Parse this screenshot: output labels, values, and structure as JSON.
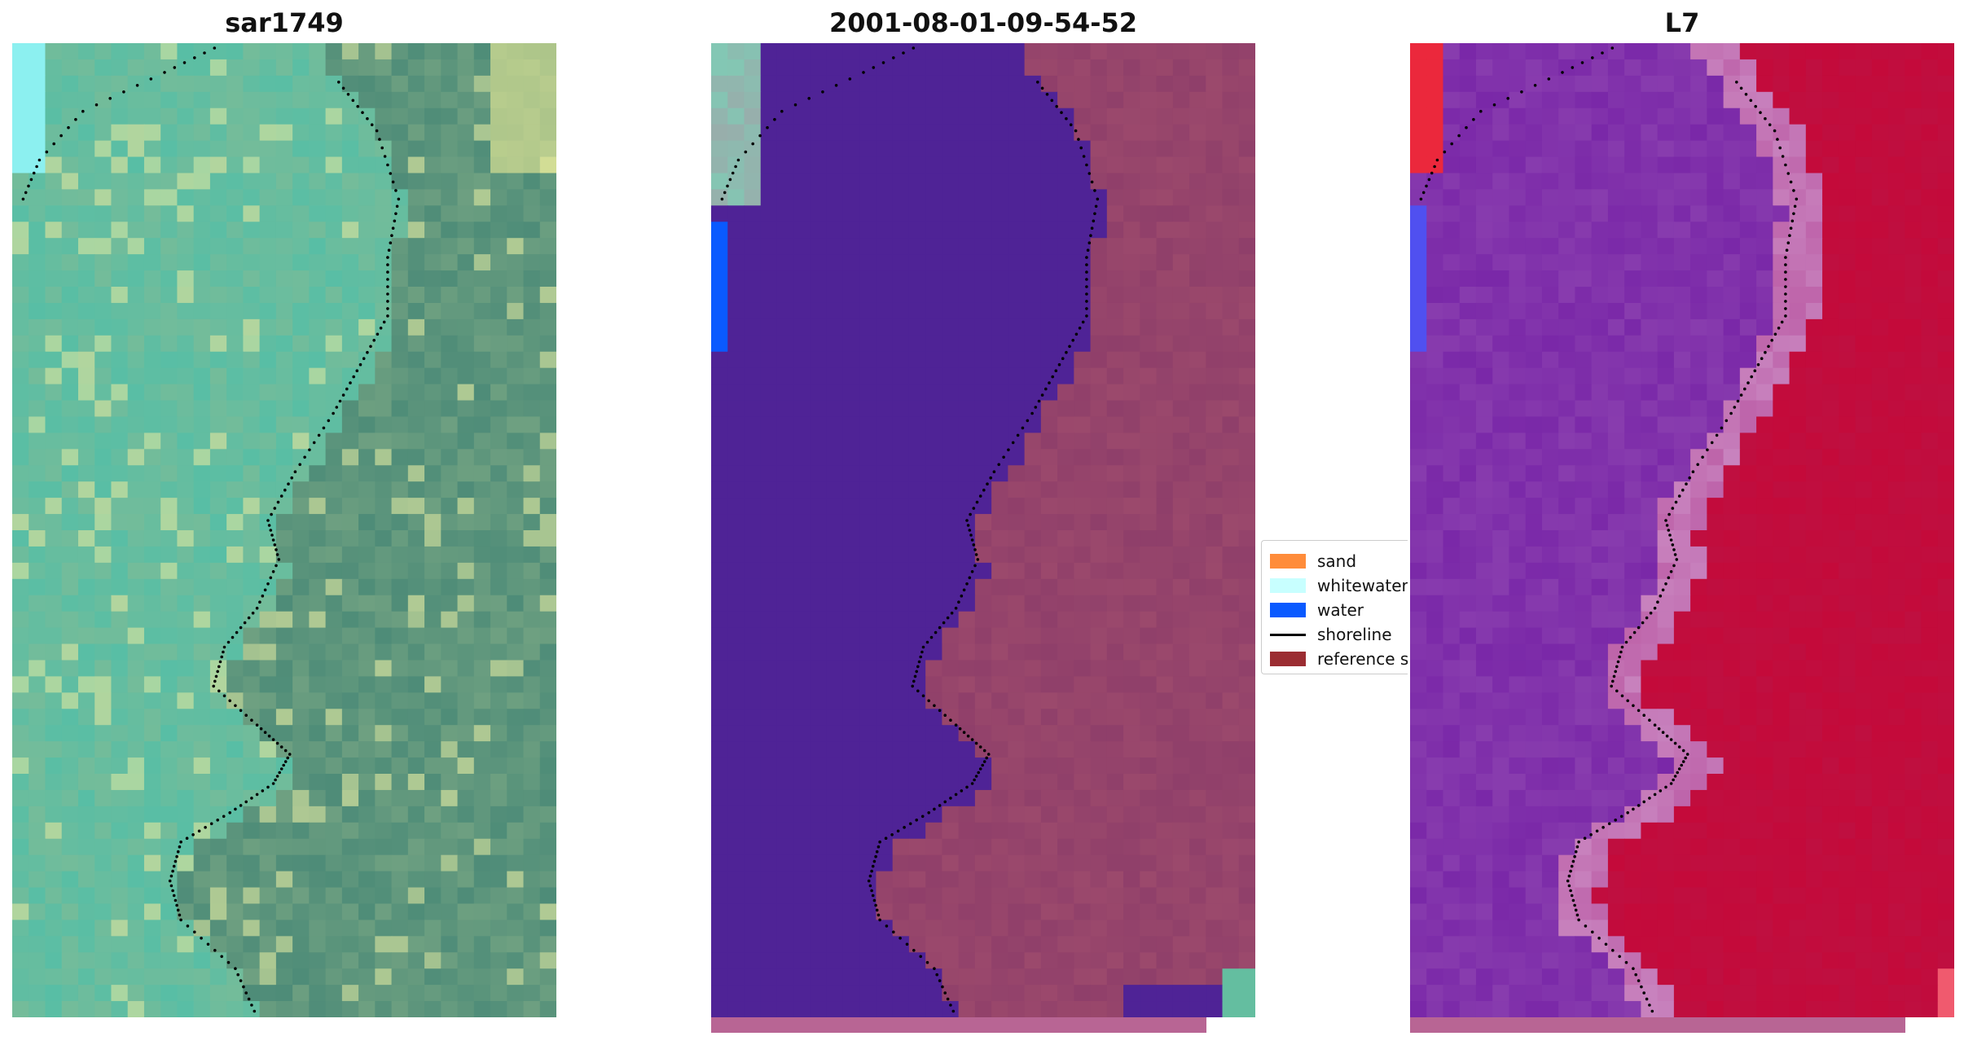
{
  "panels": [
    {
      "title": "sar1749",
      "palette": "rgb"
    },
    {
      "title": "2001-08-01-09-54-52",
      "palette": "classified"
    },
    {
      "title": "L7",
      "palette": "index"
    }
  ],
  "legend": {
    "items": [
      {
        "label": "sand",
        "color": "#ff8c3a",
        "kind": "patch"
      },
      {
        "label": "whitewater",
        "color": "#c8ffff",
        "kind": "patch"
      },
      {
        "label": "water",
        "color": "#0a5aff",
        "kind": "patch"
      },
      {
        "label": "shoreline",
        "color": "#000000",
        "kind": "line"
      },
      {
        "label": "reference s",
        "color": "#9b2d32",
        "kind": "patch"
      }
    ]
  },
  "colors": {
    "water_class": "#4f2396",
    "land_class": "#8f3f6a",
    "index_water": "#7a28a8",
    "index_land": "#c40a3a",
    "strip": "#b86594",
    "shoreline": "#000000"
  }
}
